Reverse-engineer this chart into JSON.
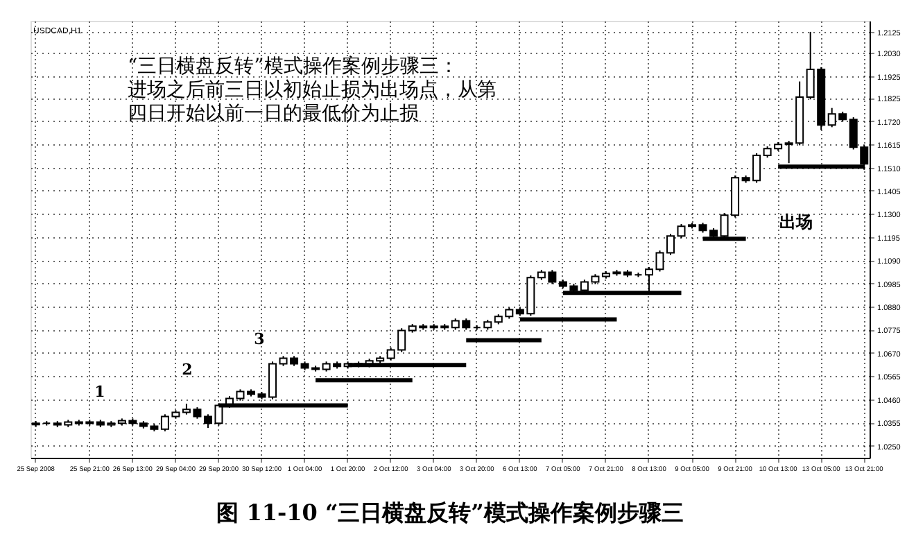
{
  "chart_data": {
    "type": "candlestick",
    "title": "图 11-10 “三日横盘反转”模式操作案例步骤三",
    "categories": [
      "25 Sep 2008",
      null,
      null,
      null,
      null,
      "25 Sep 21:00",
      null,
      null,
      null,
      "26 Sep 13:00",
      null,
      null,
      null,
      "29 Sep 04:00",
      null,
      null,
      null,
      "29 Sep 20:00",
      null,
      null,
      null,
      "30 Sep 12:00",
      null,
      null,
      null,
      "1 Oct 04:00",
      null,
      null,
      null,
      "1 Oct 20:00",
      null,
      null,
      null,
      "2 Oct 12:00",
      null,
      null,
      null,
      "3 Oct 04:00",
      null,
      null,
      null,
      "3 Oct 20:00",
      null,
      null,
      null,
      "6 Oct 13:00",
      null,
      null,
      null,
      "7 Oct 05:00",
      null,
      null,
      null,
      "7 Oct 21:00",
      null,
      null,
      null,
      "8 Oct 13:00",
      null,
      null,
      null,
      "9 Oct 05:00",
      null,
      null,
      null,
      "9 Oct 21:00",
      null,
      null,
      null,
      "10 Oct 13:00",
      null,
      null,
      null,
      "13 Oct 05:00",
      null,
      null,
      null,
      "13 Oct 21:00"
    ],
    "ohlc": [
      [
        1.0345,
        1.0361,
        1.0335,
        1.0351
      ],
      [
        1.0351,
        1.0361,
        1.0341,
        1.0351
      ],
      [
        1.0351,
        1.0361,
        1.0334,
        1.0344
      ],
      [
        1.0344,
        1.0367,
        1.0334,
        1.0357
      ],
      [
        1.0357,
        1.0367,
        1.0341,
        1.0351
      ],
      [
        1.0351,
        1.0367,
        1.0341,
        1.0357
      ],
      [
        1.0357,
        1.0367,
        1.0334,
        1.0344
      ],
      [
        1.0344,
        1.0361,
        1.0334,
        1.0351
      ],
      [
        1.0351,
        1.0373,
        1.0341,
        1.0363
      ],
      [
        1.0363,
        1.0373,
        1.0341,
        1.0351
      ],
      [
        1.0351,
        1.0361,
        1.0328,
        1.0338
      ],
      [
        1.0338,
        1.0348,
        1.0315,
        1.0325
      ],
      [
        1.0325,
        1.0392,
        1.0315,
        1.0382
      ],
      [
        1.0382,
        1.0411,
        1.0372,
        1.0401
      ],
      [
        1.0401,
        1.044,
        1.0391,
        1.0414
      ],
      [
        1.0414,
        1.0424,
        1.0372,
        1.0382
      ],
      [
        1.0382,
        1.0392,
        1.033,
        1.0351
      ],
      [
        1.0351,
        1.0442,
        1.0341,
        1.0432
      ],
      [
        1.0432,
        1.0474,
        1.0422,
        1.0464
      ],
      [
        1.0464,
        1.0505,
        1.0454,
        1.0495
      ],
      [
        1.0495,
        1.0505,
        1.0473,
        1.0483
      ],
      [
        1.0483,
        1.0493,
        1.046,
        1.047
      ],
      [
        1.047,
        1.0631,
        1.046,
        1.0621
      ],
      [
        1.0621,
        1.0656,
        1.0611,
        1.0646
      ],
      [
        1.0646,
        1.0656,
        1.0611,
        1.0621
      ],
      [
        1.0621,
        1.0631,
        1.0592,
        1.0602
      ],
      [
        1.0602,
        1.0612,
        1.0586,
        1.0596
      ],
      [
        1.0596,
        1.0631,
        1.0586,
        1.0621
      ],
      [
        1.0621,
        1.0631,
        1.0599,
        1.0609
      ],
      [
        1.0609,
        1.0631,
        1.0599,
        1.0621
      ],
      [
        1.0621,
        1.0631,
        1.0605,
        1.0615
      ],
      [
        1.0615,
        1.0644,
        1.0605,
        1.0634
      ],
      [
        1.0634,
        1.0656,
        1.0624,
        1.0646
      ],
      [
        1.0646,
        1.0694,
        1.0636,
        1.0684
      ],
      [
        1.0684,
        1.0782,
        1.0674,
        1.0772
      ],
      [
        1.0772,
        1.0801,
        1.0762,
        1.0791
      ],
      [
        1.0791,
        1.0801,
        1.0775,
        1.0785
      ],
      [
        1.0785,
        1.0801,
        1.0775,
        1.0791
      ],
      [
        1.0791,
        1.0801,
        1.0775,
        1.0785
      ],
      [
        1.0785,
        1.0826,
        1.0775,
        1.0816
      ],
      [
        1.0816,
        1.0826,
        1.0775,
        1.0785
      ],
      [
        1.0785,
        1.0795,
        1.0775,
        1.0785
      ],
      [
        1.0785,
        1.082,
        1.0775,
        1.081
      ],
      [
        1.081,
        1.0845,
        1.08,
        1.0835
      ],
      [
        1.0835,
        1.0876,
        1.0825,
        1.0866
      ],
      [
        1.0866,
        1.0876,
        1.0838,
        1.0848
      ],
      [
        1.0848,
        1.1021,
        1.0838,
        1.1011
      ],
      [
        1.1011,
        1.1046,
        1.1001,
        1.1036
      ],
      [
        1.1036,
        1.1046,
        1.0982,
        1.0992
      ],
      [
        1.0992,
        1.1002,
        1.0963,
        1.0973
      ],
      [
        1.0973,
        1.0983,
        1.0944,
        1.0954
      ],
      [
        1.0954,
        1.1002,
        1.0944,
        1.0992
      ],
      [
        1.0992,
        1.1027,
        1.0982,
        1.1017
      ],
      [
        1.1017,
        1.104,
        1.1007,
        1.103
      ],
      [
        1.103,
        1.1046,
        1.102,
        1.1036
      ],
      [
        1.1036,
        1.1046,
        1.1014,
        1.1024
      ],
      [
        1.1024,
        1.1034,
        1.1014,
        1.1024
      ],
      [
        1.1024,
        1.1059,
        1.095,
        1.1049
      ],
      [
        1.1049,
        1.1134,
        1.1039,
        1.1124
      ],
      [
        1.1124,
        1.121,
        1.1114,
        1.12
      ],
      [
        1.12,
        1.1254,
        1.119,
        1.1244
      ],
      [
        1.1244,
        1.126,
        1.1234,
        1.125
      ],
      [
        1.125,
        1.126,
        1.1215,
        1.1225
      ],
      [
        1.1225,
        1.1235,
        1.119,
        1.12
      ],
      [
        1.12,
        1.1304,
        1.119,
        1.1294
      ],
      [
        1.1294,
        1.1474,
        1.1284,
        1.1464
      ],
      [
        1.1464,
        1.1474,
        1.1441,
        1.1451
      ],
      [
        1.1451,
        1.1575,
        1.1441,
        1.1565
      ],
      [
        1.1565,
        1.1606,
        1.1555,
        1.1596
      ],
      [
        1.1596,
        1.1625,
        1.1586,
        1.1615
      ],
      [
        1.1615,
        1.1631,
        1.153,
        1.1621
      ],
      [
        1.1621,
        1.19,
        1.1611,
        1.1829
      ],
      [
        1.1829,
        1.2125,
        1.1819,
        1.1955
      ],
      [
        1.1955,
        1.1965,
        1.168,
        1.1703
      ],
      [
        1.1703,
        1.178,
        1.1693,
        1.1753
      ],
      [
        1.1753,
        1.1763,
        1.1718,
        1.1728
      ],
      [
        1.1728,
        1.1738,
        1.1592,
        1.1602
      ],
      [
        1.1602,
        1.1612,
        1.15,
        1.1527
      ]
    ],
    "series": [
      {
        "type": "line",
        "color": "#000000",
        "values": [
          null,
          null,
          null,
          null,
          null,
          null,
          null,
          null,
          null,
          null,
          null,
          null,
          null,
          null,
          null,
          null,
          null,
          1.0432,
          1.0432,
          1.0432,
          1.0432,
          1.0432,
          1.0432,
          1.0432,
          1.0432,
          1.0432,
          1.0432,
          1.0432,
          1.0432,
          1.0432,
          null,
          null,
          null,
          null,
          null,
          null,
          null,
          null,
          null,
          null,
          null,
          null,
          null,
          null,
          null,
          null,
          null,
          null,
          null,
          null,
          null,
          null,
          null,
          null,
          null,
          null,
          null,
          null,
          null,
          null,
          null,
          null,
          null,
          null,
          null,
          null,
          null,
          null,
          null,
          null,
          null,
          null,
          null,
          null,
          null,
          null,
          null,
          null
        ]
      },
      {
        "type": "line",
        "color": "#000000",
        "values": [
          null,
          null,
          null,
          null,
          null,
          null,
          null,
          null,
          null,
          null,
          null,
          null,
          null,
          null,
          null,
          null,
          null,
          null,
          null,
          null,
          null,
          null,
          null,
          null,
          null,
          null,
          1.0546,
          1.0546,
          1.0546,
          1.0546,
          1.0546,
          1.0546,
          1.0546,
          1.0546,
          1.0546,
          1.0546,
          null,
          null,
          null,
          null,
          null,
          null,
          null,
          null,
          null,
          null,
          null,
          null,
          null,
          null,
          null,
          null,
          null,
          null,
          null,
          null,
          null,
          null,
          null,
          null,
          null,
          null,
          null,
          null,
          null,
          null,
          null,
          null,
          null,
          null,
          null,
          null,
          null,
          null,
          null,
          null,
          null,
          null
        ]
      },
      {
        "type": "line",
        "color": "#000000",
        "values": [
          null,
          null,
          null,
          null,
          null,
          null,
          null,
          null,
          null,
          null,
          null,
          null,
          null,
          null,
          null,
          null,
          null,
          null,
          null,
          null,
          null,
          null,
          null,
          null,
          null,
          null,
          null,
          null,
          null,
          1.0615,
          1.0615,
          1.0615,
          1.0615,
          1.0615,
          1.0615,
          1.0615,
          1.0615,
          1.0615,
          1.0615,
          1.0615,
          1.0615,
          null,
          null,
          null,
          null,
          null,
          null,
          null,
          null,
          null,
          null,
          null,
          null,
          null,
          null,
          null,
          null,
          null,
          null,
          null,
          null,
          null,
          null,
          null,
          null,
          null,
          null,
          null,
          null,
          null,
          null,
          null,
          null,
          null,
          null,
          null,
          null,
          null
        ]
      },
      {
        "type": "line",
        "color": "#000000",
        "values": [
          null,
          null,
          null,
          null,
          null,
          null,
          null,
          null,
          null,
          null,
          null,
          null,
          null,
          null,
          null,
          null,
          null,
          null,
          null,
          null,
          null,
          null,
          null,
          null,
          null,
          null,
          null,
          null,
          null,
          null,
          null,
          null,
          null,
          null,
          null,
          null,
          null,
          null,
          null,
          null,
          1.0728,
          1.0728,
          1.0728,
          1.0728,
          1.0728,
          1.0728,
          1.0728,
          1.0728,
          null,
          null,
          null,
          null,
          null,
          null,
          null,
          null,
          null,
          null,
          null,
          null,
          null,
          null,
          null,
          null,
          null,
          null,
          null,
          null,
          null,
          null,
          null,
          null,
          null,
          null,
          null,
          null,
          null,
          null
        ]
      },
      {
        "type": "line",
        "color": "#000000",
        "values": [
          null,
          null,
          null,
          null,
          null,
          null,
          null,
          null,
          null,
          null,
          null,
          null,
          null,
          null,
          null,
          null,
          null,
          null,
          null,
          null,
          null,
          null,
          null,
          null,
          null,
          null,
          null,
          null,
          null,
          null,
          null,
          null,
          null,
          null,
          null,
          null,
          null,
          null,
          null,
          null,
          null,
          null,
          null,
          null,
          null,
          1.0822,
          1.0822,
          1.0822,
          1.0822,
          1.0822,
          1.0822,
          1.0822,
          1.0822,
          1.0822,
          1.0822,
          null,
          null,
          null,
          null,
          null,
          null,
          null,
          null,
          null,
          null,
          null,
          null,
          null,
          null,
          null,
          null,
          null,
          null,
          null,
          null,
          null,
          null,
          null
        ]
      },
      {
        "type": "line",
        "color": "#000000",
        "values": [
          null,
          null,
          null,
          null,
          null,
          null,
          null,
          null,
          null,
          null,
          null,
          null,
          null,
          null,
          null,
          null,
          null,
          null,
          null,
          null,
          null,
          null,
          null,
          null,
          null,
          null,
          null,
          null,
          null,
          null,
          null,
          null,
          null,
          null,
          null,
          null,
          null,
          null,
          null,
          null,
          null,
          null,
          null,
          null,
          null,
          null,
          null,
          null,
          null,
          1.0942,
          1.0942,
          1.0942,
          1.0942,
          1.0942,
          1.0942,
          1.0942,
          1.0942,
          1.0942,
          1.0942,
          1.0942,
          1.0942,
          null,
          null,
          null,
          null,
          null,
          null,
          null,
          null,
          null,
          null,
          null,
          null,
          null,
          null,
          null,
          null,
          null
        ]
      },
      {
        "type": "line",
        "color": "#000000",
        "values": [
          null,
          null,
          null,
          null,
          null,
          null,
          null,
          null,
          null,
          null,
          null,
          null,
          null,
          null,
          null,
          null,
          null,
          null,
          null,
          null,
          null,
          null,
          null,
          null,
          null,
          null,
          null,
          null,
          null,
          null,
          null,
          null,
          null,
          null,
          null,
          null,
          null,
          null,
          null,
          null,
          null,
          null,
          null,
          null,
          null,
          null,
          null,
          null,
          null,
          null,
          null,
          null,
          null,
          null,
          null,
          null,
          null,
          null,
          null,
          null,
          null,
          null,
          1.1187,
          1.1187,
          1.1187,
          1.1187,
          1.1187,
          null,
          null,
          null,
          null,
          null,
          null,
          null,
          null,
          null,
          null,
          null
        ]
      },
      {
        "type": "line",
        "color": "#000000",
        "values": [
          null,
          null,
          null,
          null,
          null,
          null,
          null,
          null,
          null,
          null,
          null,
          null,
          null,
          null,
          null,
          null,
          null,
          null,
          null,
          null,
          null,
          null,
          null,
          null,
          null,
          null,
          null,
          null,
          null,
          null,
          null,
          null,
          null,
          null,
          null,
          null,
          null,
          null,
          null,
          null,
          null,
          null,
          null,
          null,
          null,
          null,
          null,
          null,
          null,
          null,
          null,
          null,
          null,
          null,
          null,
          null,
          null,
          null,
          null,
          null,
          null,
          null,
          null,
          null,
          null,
          null,
          null,
          null,
          null,
          1.1514,
          1.1514,
          1.1514,
          1.1514,
          1.1514,
          1.1514,
          1.1514,
          1.1514,
          1.1514
        ]
      }
    ],
    "ylim": [
      1.0195,
      1.2175
    ],
    "yticks": [
      {
        "value": 1.025,
        "label": "1.0250"
      },
      1.0355,
      {
        "value": 1.046,
        "label": "1.0460"
      },
      1.0565,
      {
        "value": 1.067,
        "label": "1.0670"
      },
      1.0775,
      {
        "value": 1.088,
        "label": "1.0880"
      },
      1.0985,
      {
        "value": 1.109,
        "label": "1.1090"
      },
      1.1195,
      {
        "value": 1.13,
        "label": "1.1300"
      },
      1.1405,
      {
        "value": 1.151,
        "label": "1.1510"
      },
      1.1615,
      {
        "value": 1.172,
        "label": "1.1720"
      },
      1.1825,
      1.1925,
      {
        "value": 1.203,
        "label": "1.2030"
      },
      1.2125
    ],
    "grid": true,
    "annotations": [
      "USDCAD,H1",
      "“三日横盘反转”模式操作案例步骤三：进场之后前三日以初始止损为出场点，从第四日开始以前一日的最低价为止损",
      "1",
      "2",
      "3",
      "出场"
    ]
  }
}
